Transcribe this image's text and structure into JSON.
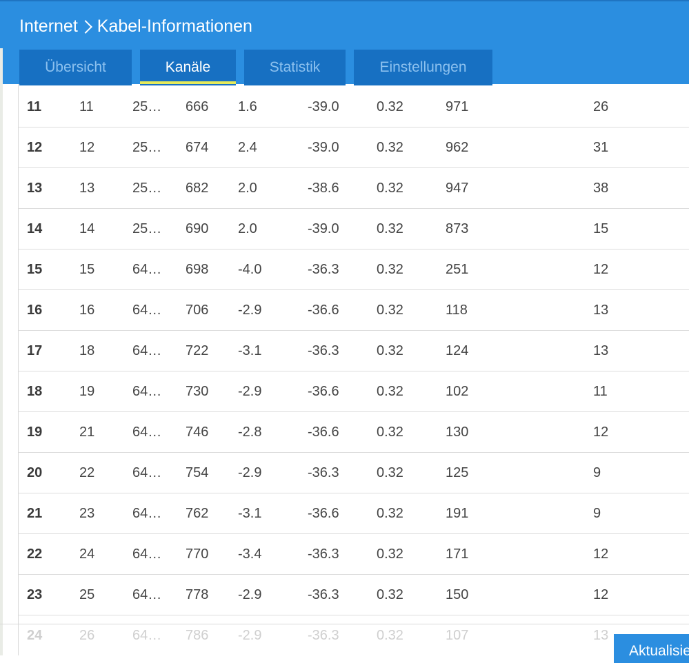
{
  "header": {
    "breadcrumb": [
      "Internet",
      "Kabel-Informationen"
    ],
    "tabs": [
      {
        "label": "Übersicht",
        "active": false
      },
      {
        "label": "Kanäle",
        "active": true
      },
      {
        "label": "Statistik",
        "active": false
      },
      {
        "label": "Einstellungen",
        "active": false
      }
    ]
  },
  "table": {
    "rows": [
      [
        "11",
        "11",
        "25…",
        "666",
        "1.6",
        "-39.0",
        "0.32",
        "971",
        "26"
      ],
      [
        "12",
        "12",
        "25…",
        "674",
        "2.4",
        "-39.0",
        "0.32",
        "962",
        "31"
      ],
      [
        "13",
        "13",
        "25…",
        "682",
        "2.0",
        "-38.6",
        "0.32",
        "947",
        "38"
      ],
      [
        "14",
        "14",
        "25…",
        "690",
        "2.0",
        "-39.0",
        "0.32",
        "873",
        "15"
      ],
      [
        "15",
        "15",
        "64…",
        "698",
        "-4.0",
        "-36.3",
        "0.32",
        "251",
        "12"
      ],
      [
        "16",
        "16",
        "64…",
        "706",
        "-2.9",
        "-36.6",
        "0.32",
        "118",
        "13"
      ],
      [
        "17",
        "18",
        "64…",
        "722",
        "-3.1",
        "-36.3",
        "0.32",
        "124",
        "13"
      ],
      [
        "18",
        "19",
        "64…",
        "730",
        "-2.9",
        "-36.6",
        "0.32",
        "102",
        "11"
      ],
      [
        "19",
        "21",
        "64…",
        "746",
        "-2.8",
        "-36.6",
        "0.32",
        "130",
        "12"
      ],
      [
        "20",
        "22",
        "64…",
        "754",
        "-2.9",
        "-36.3",
        "0.32",
        "125",
        "9"
      ],
      [
        "21",
        "23",
        "64…",
        "762",
        "-3.1",
        "-36.6",
        "0.32",
        "191",
        "9"
      ],
      [
        "22",
        "24",
        "64…",
        "770",
        "-3.4",
        "-36.3",
        "0.32",
        "171",
        "12"
      ],
      [
        "23",
        "25",
        "64…",
        "778",
        "-2.9",
        "-36.3",
        "0.32",
        "150",
        "12"
      ],
      [
        "24",
        "26",
        "64…",
        "786",
        "-2.9",
        "-36.3",
        "0.32",
        "107",
        "13"
      ]
    ]
  },
  "footer": {
    "refresh_label": "Aktualisieren"
  }
}
